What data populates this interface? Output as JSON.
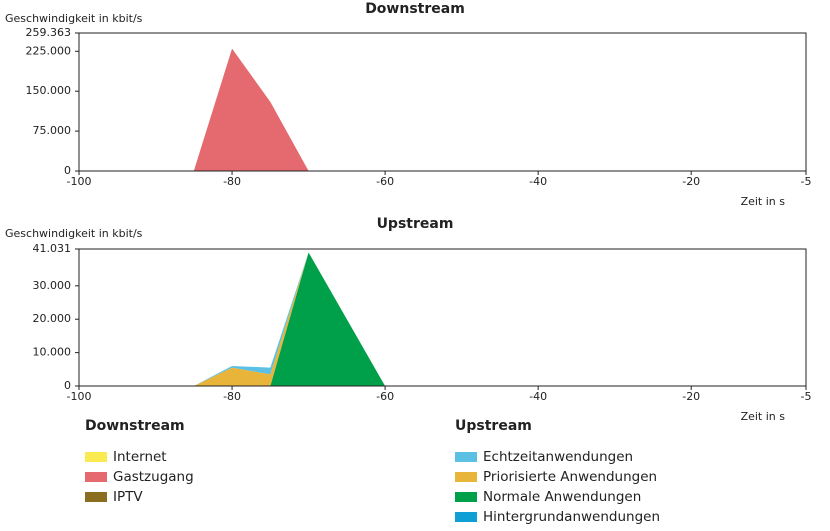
{
  "chart_data": [
    {
      "type": "area",
      "stacked": true,
      "title": "Downstream",
      "ylabel": "Geschwindigkeit in kbit/s",
      "xlabel": "Zeit in s",
      "x": [
        -100,
        -95,
        -90,
        -85,
        -80,
        -75,
        -70,
        -65,
        -60,
        -55,
        -50,
        -45,
        -40,
        -35,
        -30,
        -25,
        -20,
        -15,
        -10,
        -5
      ],
      "xlim": [
        -100,
        -5
      ],
      "xticks": [
        -100,
        -80,
        -60,
        -40,
        -20,
        -5
      ],
      "ylim": [
        0,
        259363
      ],
      "yticks": [
        0,
        {
          "value": 75000,
          "label": "75.000"
        },
        {
          "value": 150000,
          "label": "150.000"
        },
        {
          "value": 225000,
          "label": "225.000"
        },
        {
          "value": 259363,
          "label": "259.363"
        }
      ],
      "series": [
        {
          "name": "Internet",
          "color": "#f9ea50",
          "values": [
            0,
            0,
            0,
            0,
            0,
            0,
            0,
            0,
            0,
            0,
            0,
            0,
            0,
            0,
            0,
            0,
            0,
            0,
            0,
            0
          ]
        },
        {
          "name": "Gastzugang",
          "color": "#e46a6f",
          "values": [
            0,
            0,
            0,
            0,
            230000,
            130000,
            0,
            0,
            0,
            0,
            0,
            0,
            0,
            0,
            0,
            0,
            0,
            0,
            0,
            0
          ]
        },
        {
          "name": "IPTV",
          "color": "#8a6d1e",
          "values": [
            0,
            0,
            0,
            0,
            0,
            0,
            0,
            0,
            0,
            0,
            0,
            0,
            0,
            0,
            0,
            0,
            0,
            0,
            0,
            0
          ]
        }
      ]
    },
    {
      "type": "area",
      "stacked": true,
      "title": "Upstream",
      "ylabel": "Geschwindigkeit in kbit/s",
      "xlabel": "Zeit in s",
      "x": [
        -100,
        -95,
        -90,
        -85,
        -80,
        -75,
        -70,
        -65,
        -60,
        -55,
        -50,
        -45,
        -40,
        -35,
        -30,
        -25,
        -20,
        -15,
        -10,
        -5
      ],
      "xlim": [
        -100,
        -5
      ],
      "xticks": [
        -100,
        -80,
        -60,
        -40,
        -20,
        -5
      ],
      "ylim": [
        0,
        41031
      ],
      "yticks": [
        0,
        {
          "value": 10000,
          "label": "10.000"
        },
        {
          "value": 20000,
          "label": "20.000"
        },
        {
          "value": 30000,
          "label": "30.000"
        },
        {
          "value": 41031,
          "label": "41.031"
        }
      ],
      "series": [
        {
          "name": "Echtzeitanwendungen",
          "color": "#5bc0e3",
          "values": [
            0,
            0,
            0,
            0,
            500,
            2000,
            0,
            0,
            0,
            0,
            0,
            0,
            0,
            0,
            0,
            0,
            0,
            0,
            0,
            0
          ]
        },
        {
          "name": "Priorisierte Anwendungen",
          "color": "#e8b43a",
          "values": [
            0,
            0,
            0,
            0,
            5500,
            3500,
            0,
            0,
            0,
            0,
            0,
            0,
            0,
            0,
            0,
            0,
            0,
            0,
            0,
            0
          ]
        },
        {
          "name": "Normale Anwendungen",
          "color": "#00a04a",
          "values": [
            0,
            0,
            0,
            0,
            0,
            0,
            40000,
            20000,
            0,
            0,
            0,
            0,
            0,
            0,
            0,
            0,
            0,
            0,
            0,
            0
          ]
        },
        {
          "name": "Hintergrundanwendungen",
          "color": "#109fd4",
          "values": [
            0,
            0,
            0,
            0,
            0,
            0,
            0,
            0,
            0,
            0,
            0,
            0,
            0,
            0,
            0,
            0,
            0,
            0,
            0,
            0
          ]
        }
      ]
    }
  ]
}
